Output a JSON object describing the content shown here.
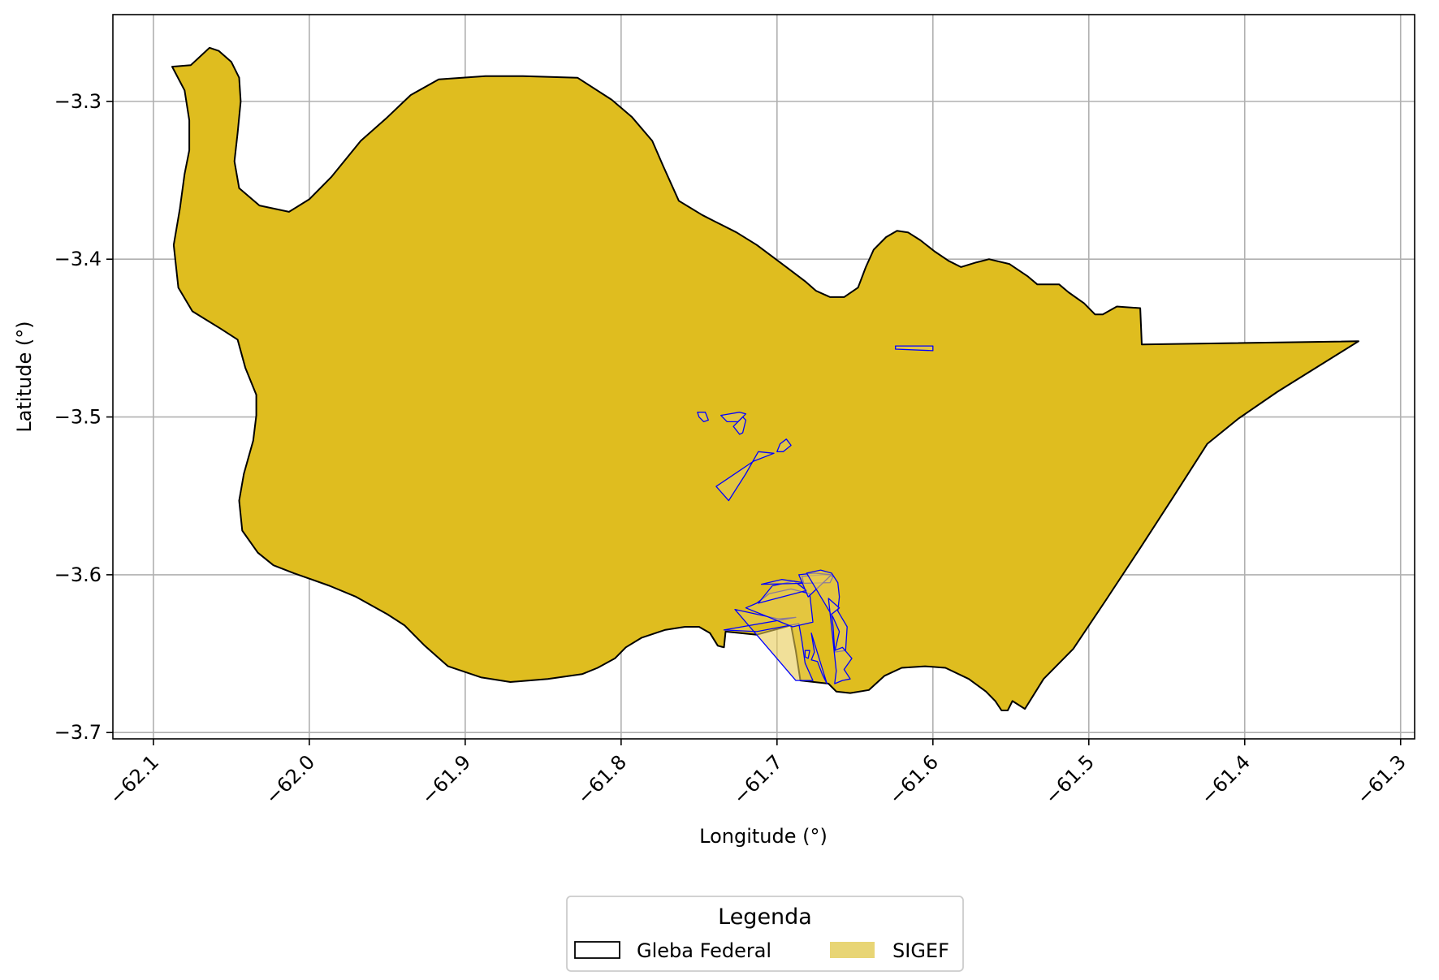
{
  "chart_data": {
    "type": "map",
    "xlabel": "Longitude (°)",
    "ylabel": "Latitude (°)",
    "xlim": [
      -62.126,
      -61.291
    ],
    "ylim": [
      -3.704,
      -3.245
    ],
    "xticks": [
      -62.1,
      -62.0,
      -61.9,
      -61.8,
      -61.7,
      -61.6,
      -61.5,
      -61.4,
      -61.3
    ],
    "xtick_labels": [
      "−62.1",
      "−62.0",
      "−61.9",
      "−61.8",
      "−61.7",
      "−61.6",
      "−61.5",
      "−61.4",
      "−61.3"
    ],
    "yticks": [
      -3.3,
      -3.4,
      -3.5,
      -3.6,
      -3.7
    ],
    "ytick_labels": [
      "−3.3",
      "−3.4",
      "−3.5",
      "−3.6",
      "−3.7"
    ],
    "grid": true,
    "legend": {
      "title": "Legenda",
      "position": "bottom-center",
      "entries": [
        {
          "label": "Gleba Federal",
          "style": "outline",
          "color": "#000000"
        },
        {
          "label": "SIGEF",
          "style": "fill",
          "color": "#e8d575"
        }
      ]
    },
    "colors": {
      "gleba_fill": "#dfbd1f",
      "gleba_edge": "#000000",
      "sigef_fill": "#e8cc55",
      "sigef_edge": "#0000ff"
    },
    "gleba_polygon": [
      [
        -62.088,
        -3.278
      ],
      [
        -62.076,
        -3.277
      ],
      [
        -62.064,
        -3.266
      ],
      [
        -62.058,
        -3.268
      ],
      [
        -62.05,
        -3.275
      ],
      [
        -62.045,
        -3.285
      ],
      [
        -62.044,
        -3.3
      ],
      [
        -62.046,
        -3.32
      ],
      [
        -62.048,
        -3.338
      ],
      [
        -62.045,
        -3.355
      ],
      [
        -62.032,
        -3.366
      ],
      [
        -62.013,
        -3.37
      ],
      [
        -62.0,
        -3.362
      ],
      [
        -61.986,
        -3.348
      ],
      [
        -61.967,
        -3.325
      ],
      [
        -61.951,
        -3.311
      ],
      [
        -61.935,
        -3.296
      ],
      [
        -61.917,
        -3.286
      ],
      [
        -61.887,
        -3.284
      ],
      [
        -61.863,
        -3.284
      ],
      [
        -61.828,
        -3.285
      ],
      [
        -61.806,
        -3.299
      ],
      [
        -61.793,
        -3.31
      ],
      [
        -61.78,
        -3.325
      ],
      [
        -61.773,
        -3.341
      ],
      [
        -61.763,
        -3.363
      ],
      [
        -61.748,
        -3.372
      ],
      [
        -61.74,
        -3.376
      ],
      [
        -61.726,
        -3.383
      ],
      [
        -61.713,
        -3.391
      ],
      [
        -61.694,
        -3.405
      ],
      [
        -61.682,
        -3.414
      ],
      [
        -61.675,
        -3.42
      ],
      [
        -61.666,
        -3.424
      ],
      [
        -61.657,
        -3.424
      ],
      [
        -61.648,
        -3.418
      ],
      [
        -61.643,
        -3.405
      ],
      [
        -61.638,
        -3.394
      ],
      [
        -61.63,
        -3.386
      ],
      [
        -61.623,
        -3.382
      ],
      [
        -61.616,
        -3.383
      ],
      [
        -61.608,
        -3.388
      ],
      [
        -61.599,
        -3.395
      ],
      [
        -61.59,
        -3.401
      ],
      [
        -61.582,
        -3.405
      ],
      [
        -61.572,
        -3.402
      ],
      [
        -61.564,
        -3.4
      ],
      [
        -61.551,
        -3.403
      ],
      [
        -61.539,
        -3.411
      ],
      [
        -61.533,
        -3.416
      ],
      [
        -61.519,
        -3.416
      ],
      [
        -61.513,
        -3.421
      ],
      [
        -61.503,
        -3.428
      ],
      [
        -61.496,
        -3.435
      ],
      [
        -61.491,
        -3.435
      ],
      [
        -61.482,
        -3.43
      ],
      [
        -61.467,
        -3.431
      ],
      [
        -61.466,
        -3.454
      ],
      [
        -61.327,
        -3.452
      ],
      [
        -61.353,
        -3.468
      ],
      [
        -61.379,
        -3.484
      ],
      [
        -61.404,
        -3.501
      ],
      [
        -61.424,
        -3.517
      ],
      [
        -61.446,
        -3.551
      ],
      [
        -61.467,
        -3.583
      ],
      [
        -61.489,
        -3.616
      ],
      [
        -61.51,
        -3.647
      ],
      [
        -61.529,
        -3.666
      ],
      [
        -61.541,
        -3.685
      ],
      [
        -61.549,
        -3.68
      ],
      [
        -61.552,
        -3.686
      ],
      [
        -61.556,
        -3.686
      ],
      [
        -61.56,
        -3.68
      ],
      [
        -61.566,
        -3.674
      ],
      [
        -61.577,
        -3.666
      ],
      [
        -61.592,
        -3.659
      ],
      [
        -61.605,
        -3.658
      ],
      [
        -61.62,
        -3.659
      ],
      [
        -61.631,
        -3.664
      ],
      [
        -61.641,
        -3.673
      ],
      [
        -61.653,
        -3.675
      ],
      [
        -61.662,
        -3.674
      ],
      [
        -61.667,
        -3.669
      ],
      [
        -61.685,
        -3.667
      ],
      [
        -61.688,
        -3.648
      ],
      [
        -61.691,
        -3.632
      ],
      [
        -61.713,
        -3.638
      ],
      [
        -61.733,
        -3.636
      ],
      [
        -61.734,
        -3.646
      ],
      [
        -61.738,
        -3.645
      ],
      [
        -61.743,
        -3.637
      ],
      [
        -61.75,
        -3.633
      ],
      [
        -61.759,
        -3.633
      ],
      [
        -61.772,
        -3.635
      ],
      [
        -61.787,
        -3.64
      ],
      [
        -61.797,
        -3.646
      ],
      [
        -61.804,
        -3.653
      ],
      [
        -61.815,
        -3.659
      ],
      [
        -61.825,
        -3.663
      ],
      [
        -61.847,
        -3.666
      ],
      [
        -61.871,
        -3.668
      ],
      [
        -61.89,
        -3.665
      ],
      [
        -61.911,
        -3.658
      ],
      [
        -61.926,
        -3.645
      ],
      [
        -61.939,
        -3.632
      ],
      [
        -61.95,
        -3.625
      ],
      [
        -61.97,
        -3.614
      ],
      [
        -61.987,
        -3.607
      ],
      [
        -62.01,
        -3.599
      ],
      [
        -62.023,
        -3.594
      ],
      [
        -62.033,
        -3.586
      ],
      [
        -62.043,
        -3.572
      ],
      [
        -62.045,
        -3.553
      ],
      [
        -62.042,
        -3.536
      ],
      [
        -62.036,
        -3.515
      ],
      [
        -62.034,
        -3.499
      ],
      [
        -62.034,
        -3.486
      ],
      [
        -62.041,
        -3.469
      ],
      [
        -62.046,
        -3.451
      ],
      [
        -62.057,
        -3.444
      ],
      [
        -62.075,
        -3.433
      ],
      [
        -62.084,
        -3.418
      ],
      [
        -62.087,
        -3.391
      ],
      [
        -62.083,
        -3.368
      ],
      [
        -62.08,
        -3.346
      ],
      [
        -62.077,
        -3.331
      ],
      [
        -62.077,
        -3.312
      ],
      [
        -62.08,
        -3.293
      ]
    ],
    "sigef_parcels": [
      [
        [
          -61.624,
          -3.455
        ],
        [
          -61.6,
          -3.455
        ],
        [
          -61.6,
          -3.458
        ],
        [
          -61.624,
          -3.457
        ]
      ],
      [
        [
          -61.751,
          -3.497
        ],
        [
          -61.746,
          -3.497
        ],
        [
          -61.744,
          -3.502
        ],
        [
          -61.747,
          -3.503
        ],
        [
          -61.75,
          -3.5
        ]
      ],
      [
        [
          -61.736,
          -3.499
        ],
        [
          -61.724,
          -3.497
        ],
        [
          -61.72,
          -3.498
        ],
        [
          -61.725,
          -3.503
        ],
        [
          -61.732,
          -3.503
        ]
      ],
      [
        [
          -61.728,
          -3.506
        ],
        [
          -61.722,
          -3.5
        ],
        [
          -61.72,
          -3.502
        ],
        [
          -61.722,
          -3.51
        ],
        [
          -61.724,
          -3.511
        ]
      ],
      [
        [
          -61.7,
          -3.522
        ],
        [
          -61.698,
          -3.517
        ],
        [
          -61.694,
          -3.514
        ],
        [
          -61.691,
          -3.518
        ],
        [
          -61.696,
          -3.522
        ]
      ],
      [
        [
          -61.739,
          -3.544
        ],
        [
          -61.731,
          -3.553
        ],
        [
          -61.72,
          -3.536
        ],
        [
          -61.712,
          -3.522
        ],
        [
          -61.702,
          -3.523
        ],
        [
          -61.715,
          -3.528
        ]
      ],
      [
        [
          -61.727,
          -3.622
        ],
        [
          -61.713,
          -3.625
        ],
        [
          -61.699,
          -3.628
        ],
        [
          -61.688,
          -3.627
        ],
        [
          -61.734,
          -3.635
        ],
        [
          -61.713,
          -3.636
        ],
        [
          -61.686,
          -3.631
        ],
        [
          -61.684,
          -3.642
        ],
        [
          -61.682,
          -3.656
        ],
        [
          -61.677,
          -3.667
        ],
        [
          -61.688,
          -3.667
        ]
      ],
      [
        [
          -61.72,
          -3.621
        ],
        [
          -61.713,
          -3.618
        ],
        [
          -61.705,
          -3.612
        ],
        [
          -61.691,
          -3.609
        ],
        [
          -61.679,
          -3.612
        ],
        [
          -61.677,
          -3.63
        ],
        [
          -61.69,
          -3.633
        ]
      ],
      [
        [
          -61.712,
          -3.618
        ],
        [
          -61.703,
          -3.607
        ],
        [
          -61.689,
          -3.604
        ],
        [
          -61.681,
          -3.61
        ]
      ],
      [
        [
          -61.71,
          -3.606
        ],
        [
          -61.697,
          -3.603
        ],
        [
          -61.683,
          -3.605
        ],
        [
          -61.684,
          -3.601
        ],
        [
          -61.67,
          -3.6
        ],
        [
          -61.664,
          -3.601
        ],
        [
          -61.666,
          -3.605
        ]
      ],
      [
        [
          -61.686,
          -3.6
        ],
        [
          -61.676,
          -3.599
        ],
        [
          -61.665,
          -3.6
        ],
        [
          -61.68,
          -3.614
        ]
      ],
      [
        [
          -61.681,
          -3.599
        ],
        [
          -61.672,
          -3.597
        ],
        [
          -61.665,
          -3.599
        ],
        [
          -61.661,
          -3.605
        ],
        [
          -61.66,
          -3.614
        ],
        [
          -61.661,
          -3.623
        ],
        [
          -61.655,
          -3.633
        ],
        [
          -61.656,
          -3.648
        ],
        [
          -61.663,
          -3.649
        ],
        [
          -61.66,
          -3.636
        ],
        [
          -61.664,
          -3.627
        ]
      ],
      [
        [
          -61.667,
          -3.615
        ],
        [
          -61.66,
          -3.621
        ],
        [
          -61.665,
          -3.625
        ],
        [
          -61.664,
          -3.633
        ],
        [
          -61.663,
          -3.648
        ],
        [
          -61.658,
          -3.646
        ],
        [
          -61.652,
          -3.653
        ],
        [
          -61.657,
          -3.66
        ],
        [
          -61.653,
          -3.666
        ],
        [
          -61.658,
          -3.667
        ],
        [
          -61.663,
          -3.669
        ],
        [
          -61.662,
          -3.661
        ]
      ],
      [
        [
          -61.678,
          -3.637
        ],
        [
          -61.676,
          -3.649
        ],
        [
          -61.678,
          -3.654
        ],
        [
          -61.674,
          -3.655
        ],
        [
          -61.671,
          -3.663
        ],
        [
          -61.668,
          -3.669
        ]
      ],
      [
        [
          -61.682,
          -3.648
        ],
        [
          -61.679,
          -3.648
        ],
        [
          -61.68,
          -3.653
        ],
        [
          -61.682,
          -3.652
        ]
      ]
    ]
  }
}
